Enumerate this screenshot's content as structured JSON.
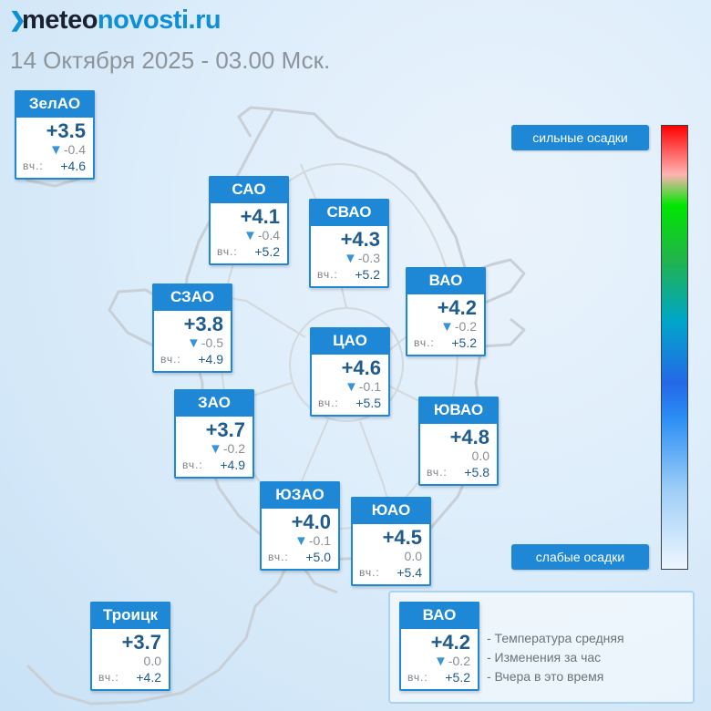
{
  "brand": {
    "part1": "meteo",
    "part2": "novosti.ru"
  },
  "subtitle": "14 Октября 2025 - 03.00 Мск.",
  "yesterday_label": "вч.:",
  "districts": [
    {
      "name": "ЗелАО",
      "temp": "+3.5",
      "delta": "-0.4",
      "trend": "down",
      "yesterday": "+4.6"
    },
    {
      "name": "САО",
      "temp": "+4.1",
      "delta": "-0.4",
      "trend": "down",
      "yesterday": "+5.2"
    },
    {
      "name": "СВАО",
      "temp": "+4.3",
      "delta": "-0.3",
      "trend": "down",
      "yesterday": "+5.2"
    },
    {
      "name": "ВАО",
      "temp": "+4.2",
      "delta": "-0.2",
      "trend": "down",
      "yesterday": "+5.2"
    },
    {
      "name": "СЗАО",
      "temp": "+3.8",
      "delta": "-0.5",
      "trend": "down",
      "yesterday": "+4.9"
    },
    {
      "name": "ЦАО",
      "temp": "+4.6",
      "delta": "-0.1",
      "trend": "down",
      "yesterday": "+5.5"
    },
    {
      "name": "ЗАО",
      "temp": "+3.7",
      "delta": "-0.2",
      "trend": "down",
      "yesterday": "+4.9"
    },
    {
      "name": "ЮВАО",
      "temp": "+4.8",
      "delta": "0.0",
      "trend": "none",
      "yesterday": "+5.8"
    },
    {
      "name": "ЮЗАО",
      "temp": "+4.0",
      "delta": "-0.1",
      "trend": "down",
      "yesterday": "+5.0"
    },
    {
      "name": "ЮАО",
      "temp": "+4.5",
      "delta": "0.0",
      "trend": "none",
      "yesterday": "+5.4"
    },
    {
      "name": "Троицк",
      "temp": "+3.7",
      "delta": "0.0",
      "trend": "none",
      "yesterday": "+4.2"
    }
  ],
  "legend": {
    "sample": {
      "name": "ВАО",
      "temp": "+4.2",
      "delta": "-0.2",
      "trend": "down",
      "yesterday": "+5.2"
    },
    "lines": [
      "- Температура средняя",
      "- Изменения за час",
      "- Вчера в это время"
    ]
  },
  "precip_scale": {
    "top_label": "сильные осадки",
    "bottom_label": "слабые осадки",
    "colors": [
      "#ff0000",
      "#00e600",
      "#2468e8",
      "#eef7ff"
    ]
  },
  "colors": {
    "accent": "#1e88d6",
    "temp_text": "#1f5b8c"
  }
}
